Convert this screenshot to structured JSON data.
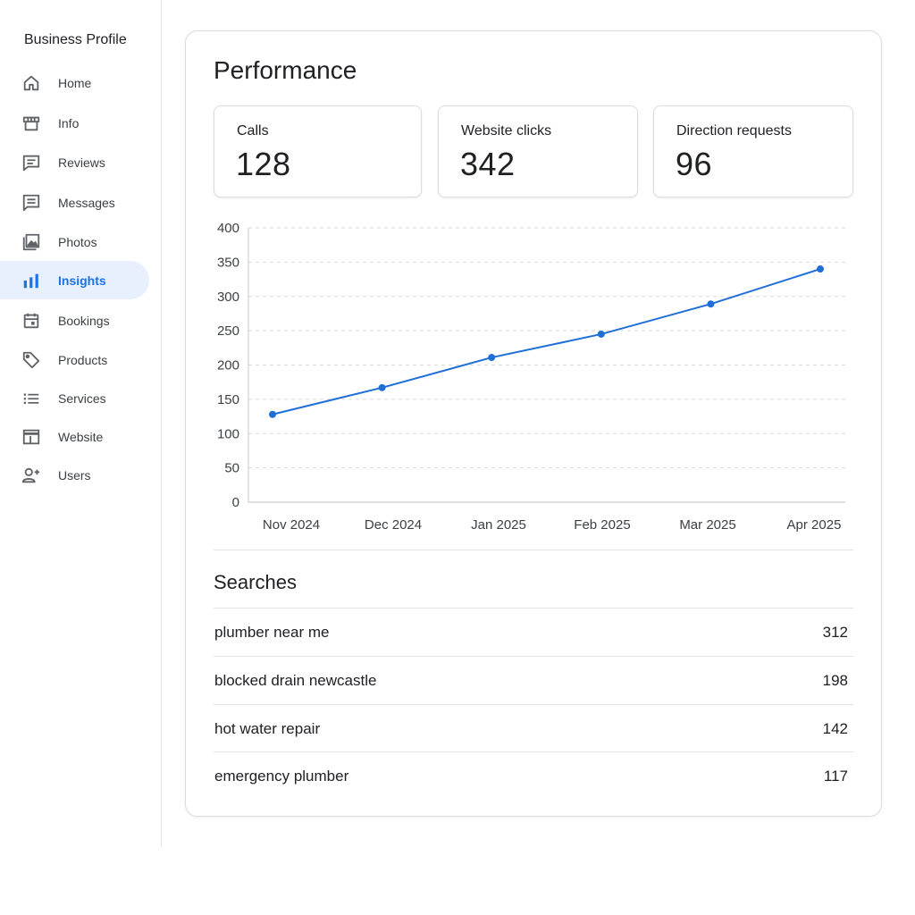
{
  "sidebar": {
    "title": "Business Profile",
    "items": [
      {
        "label": "Home",
        "icon": "home-icon",
        "active": false
      },
      {
        "label": "Info",
        "icon": "storefront-icon",
        "active": false
      },
      {
        "label": "Reviews",
        "icon": "review-icon",
        "active": false
      },
      {
        "label": "Messages",
        "icon": "message-icon",
        "active": false
      },
      {
        "label": "Photos",
        "icon": "photo-icon",
        "active": false
      },
      {
        "label": "Insights",
        "icon": "bar-chart-icon",
        "active": true
      },
      {
        "label": "Bookings",
        "icon": "calendar-icon",
        "active": false
      },
      {
        "label": "Products",
        "icon": "tag-icon",
        "active": false
      },
      {
        "label": "Services",
        "icon": "list-icon",
        "active": false
      },
      {
        "label": "Website",
        "icon": "browser-icon",
        "active": false
      },
      {
        "label": "Users",
        "icon": "add-user-icon",
        "active": false
      }
    ]
  },
  "main": {
    "title": "Performance",
    "metrics": [
      {
        "label": "Calls",
        "value": "128"
      },
      {
        "label": "Website clicks",
        "value": "342"
      },
      {
        "label": "Direction requests",
        "value": "96"
      }
    ],
    "searches_title": "Searches",
    "searches": [
      {
        "term": "plumber near me",
        "count": "312"
      },
      {
        "term": "blocked drain newcastle",
        "count": "198"
      },
      {
        "term": "hot water repair",
        "count": "142"
      },
      {
        "term": "emergency plumber",
        "count": "117"
      }
    ]
  },
  "colors": {
    "accent": "#1a73e8",
    "line": "#1f6fd6",
    "active_bg": "#e8f0fe"
  },
  "chart_data": {
    "type": "line",
    "categories": [
      "Nov 2024",
      "Dec 2024",
      "Jan 2025",
      "Feb 2025",
      "Mar 2025",
      "Apr 2025"
    ],
    "series": [
      {
        "values": [
          128,
          167,
          211,
          245,
          289,
          340
        ]
      }
    ],
    "ylim": [
      0,
      400
    ],
    "yticks": [
      0,
      50,
      100,
      150,
      200,
      250,
      300,
      350,
      400
    ],
    "grid": true,
    "legend": "none"
  }
}
